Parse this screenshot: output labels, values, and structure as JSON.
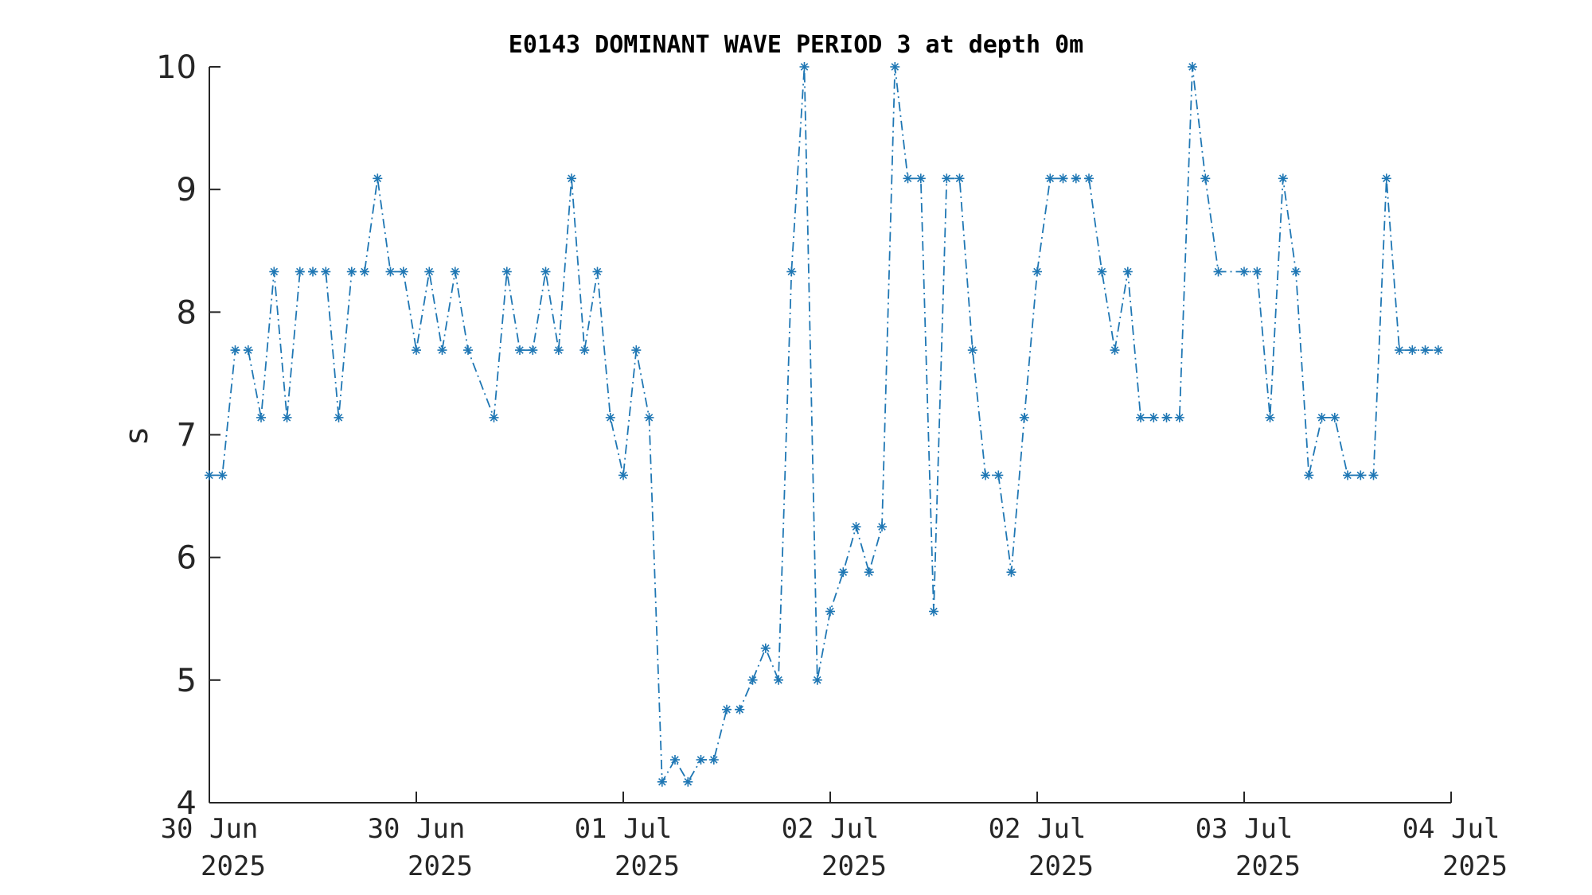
{
  "chart_data": {
    "type": "line",
    "title": "E0143 DOMINANT WAVE PERIOD 3 at depth 0m",
    "xlabel": "",
    "ylabel": "s",
    "ylim": [
      4,
      10
    ],
    "yticks": [
      "4",
      "5",
      "6",
      "7",
      "8",
      "9",
      "10"
    ],
    "xticks": [
      {
        "line1": "30 Jun",
        "line2": "2025"
      },
      {
        "line1": "30 Jun",
        "line2": "2025"
      },
      {
        "line1": "01 Jul",
        "line2": "2025"
      },
      {
        "line1": "02 Jul",
        "line2": "2025"
      },
      {
        "line1": "02 Jul",
        "line2": "2025"
      },
      {
        "line1": "03 Jul",
        "line2": "2025"
      },
      {
        "line1": "04 Jul",
        "line2": "2025"
      }
    ],
    "x_range_days": [
      0,
      3.0
    ],
    "series_color": "#1f77b4",
    "line_style": "dash-dot",
    "marker": "asterisk",
    "series": [
      {
        "name": "",
        "values": [
          6.67,
          6.67,
          7.69,
          7.69,
          7.14,
          8.33,
          7.14,
          8.33,
          8.33,
          8.33,
          7.14,
          8.33,
          8.33,
          9.09,
          8.33,
          8.33,
          7.69,
          8.33,
          7.69,
          8.33,
          7.69,
          7.14,
          8.33,
          7.69,
          7.69,
          8.33,
          7.69,
          9.09,
          7.69,
          8.33,
          7.14,
          6.67,
          7.69,
          7.14,
          4.17,
          4.35,
          4.17,
          4.35,
          4.35,
          4.76,
          4.76,
          5.0,
          5.26,
          5.0,
          8.33,
          10.0,
          5.0,
          5.56,
          5.88,
          6.25,
          5.88,
          6.25,
          10.0,
          9.09,
          9.09,
          5.56,
          9.09,
          9.09,
          7.69,
          6.67,
          6.67,
          5.88,
          7.14,
          8.33,
          9.09,
          9.09,
          9.09,
          9.09,
          8.33,
          7.69,
          8.33,
          7.14,
          7.14,
          7.14,
          7.14,
          10.0,
          9.09,
          8.33,
          8.33,
          8.33,
          7.14,
          9.09,
          8.33,
          6.67,
          7.14,
          7.14,
          6.67,
          6.67,
          6.67,
          9.09,
          7.69,
          7.69,
          7.69,
          7.69
        ],
        "x_index": [
          0,
          1,
          2,
          3,
          4,
          5,
          6,
          7,
          8,
          9,
          10,
          11,
          12,
          13,
          14,
          15,
          16,
          17,
          18,
          19,
          20,
          22,
          23,
          24,
          25,
          26,
          27,
          28,
          29,
          30,
          31,
          32,
          33,
          34,
          35,
          36,
          37,
          38,
          39,
          40,
          41,
          42,
          43,
          44,
          45,
          46,
          47,
          48,
          49,
          50,
          51,
          52,
          53,
          54,
          55,
          56,
          57,
          58,
          59,
          60,
          61,
          62,
          63,
          64,
          65,
          66,
          67,
          68,
          69,
          70,
          71,
          72,
          73,
          74,
          75,
          76,
          77,
          78,
          80,
          81,
          82,
          83,
          84,
          85,
          86,
          87,
          88,
          89,
          90,
          91,
          92,
          93,
          94,
          95
        ]
      }
    ],
    "grid": false,
    "legend": "none"
  }
}
